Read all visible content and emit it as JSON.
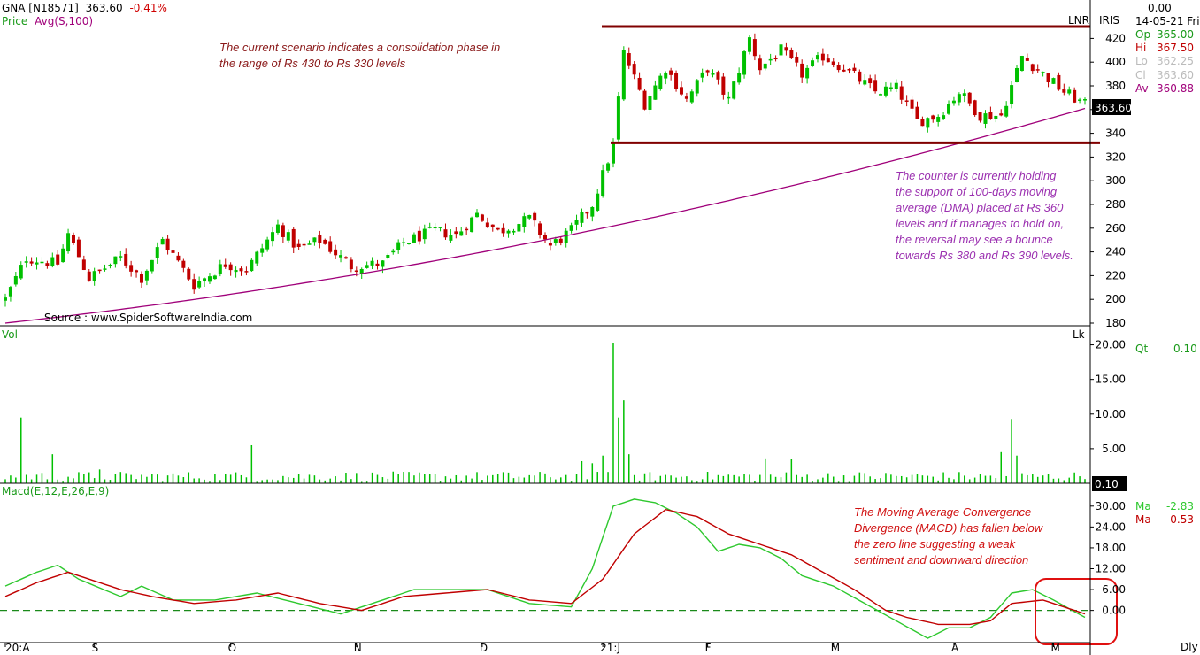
{
  "header": {
    "symbol": "GNA [N18571]",
    "last": "363.60",
    "change": "-0.41%",
    "price_label": "Price",
    "avg_label": "Avg(S,100)",
    "lnr": "LNR",
    "iris": "IRIS",
    "date": "14-05-21 Fri",
    "top_value": "0.00",
    "last_tag": "363.60"
  },
  "ohlc": [
    {
      "label": "Op",
      "value": "365.00"
    },
    {
      "label": "Hi",
      "value": "367.50"
    },
    {
      "label": "Lo",
      "value": "362.25"
    },
    {
      "label": "Cl",
      "value": "363.60"
    },
    {
      "label": "Av",
      "value": "360.88"
    }
  ],
  "source": "Source : www.SpiderSoftwareIndia.com",
  "notes": {
    "consolidation": [
      "The current scenario indicates a consolidation phase in",
      "the range of Rs 430 to Rs 330 levels"
    ],
    "dma": [
      "The counter is currently holding",
      "the support of 100-days moving",
      "average (DMA) placed at Rs 360",
      "levels and if manages to hold on,",
      "the reversal may see a bounce",
      "towards Rs 380 and Rs 390 levels."
    ],
    "macd": [
      "The Moving Average Convergence",
      "Divergence (MACD) has fallen below",
      "the zero line suggesting a weak",
      "sentiment and downward direction"
    ]
  },
  "volume_panel": {
    "label": "Vol",
    "unit": "Lk",
    "qt_label": "Qt",
    "qt_value": "0.10",
    "last_tag": "0.10"
  },
  "macd_panel": {
    "label": "Macd(E,12,E,26,E,9)",
    "legend": [
      {
        "label": "Ma",
        "value": "-2.83"
      },
      {
        "label": "Ma",
        "value": "-0.53"
      }
    ]
  },
  "periodicity": "Dly",
  "colors": {
    "up": "#00c000",
    "down": "#c00000",
    "avg": "#a0007a",
    "zone": "#800000",
    "macd": "#2ec82e",
    "signal": "#c00000",
    "note_maroon": "#8b1a1a",
    "note_purple": "#9b30b0",
    "note_red": "#d01010"
  },
  "chart_data": [
    {
      "type": "candlestick",
      "panel": "price",
      "y_ticks": [
        180,
        200,
        220,
        240,
        260,
        280,
        300,
        320,
        340,
        360,
        380,
        400,
        420
      ],
      "ylim": [
        180,
        430
      ],
      "x_ticks": [
        "20:A",
        "S",
        "O",
        "N",
        "D",
        "21:J",
        "F",
        "M",
        "A",
        "M"
      ],
      "resistance": 430,
      "support": 332,
      "close_anchors": [
        [
          0,
          200
        ],
        [
          4,
          235
        ],
        [
          10,
          230
        ],
        [
          12,
          255
        ],
        [
          16,
          218
        ],
        [
          22,
          235
        ],
        [
          26,
          218
        ],
        [
          30,
          250
        ],
        [
          36,
          212
        ],
        [
          42,
          230
        ],
        [
          46,
          225
        ],
        [
          52,
          262
        ],
        [
          56,
          242
        ],
        [
          60,
          250
        ],
        [
          66,
          228
        ],
        [
          72,
          230
        ],
        [
          76,
          248
        ],
        [
          82,
          258
        ],
        [
          86,
          254
        ],
        [
          90,
          272
        ],
        [
          94,
          257
        ],
        [
          100,
          268
        ],
        [
          104,
          245
        ],
        [
          108,
          258
        ],
        [
          112,
          280
        ],
        [
          116,
          330
        ],
        [
          118,
          408
        ],
        [
          122,
          365
        ],
        [
          126,
          395
        ],
        [
          130,
          368
        ],
        [
          134,
          395
        ],
        [
          138,
          368
        ],
        [
          142,
          420
        ],
        [
          144,
          395
        ],
        [
          148,
          410
        ],
        [
          150,
          400
        ],
        [
          152,
          390
        ],
        [
          156,
          405
        ],
        [
          160,
          395
        ],
        [
          166,
          375
        ],
        [
          170,
          378
        ],
        [
          174,
          350
        ],
        [
          178,
          355
        ],
        [
          182,
          375
        ],
        [
          186,
          355
        ],
        [
          190,
          355
        ],
        [
          194,
          405
        ],
        [
          198,
          390
        ],
        [
          202,
          375
        ],
        [
          206,
          364
        ]
      ],
      "moving_average_100": {
        "name": "Avg(S,100)",
        "start": 180,
        "end": 361
      }
    },
    {
      "type": "bar",
      "panel": "volume",
      "y_ticks": [
        5,
        10,
        15,
        20
      ],
      "ylim": [
        0,
        22.5
      ],
      "spikes": [
        [
          3,
          9.5
        ],
        [
          9,
          4.2
        ],
        [
          18,
          2
        ],
        [
          47,
          5.5
        ],
        [
          110,
          3.2
        ],
        [
          112,
          2.9
        ],
        [
          114,
          4
        ],
        [
          116,
          20.2
        ],
        [
          117,
          9.5
        ],
        [
          118,
          12
        ],
        [
          119,
          4.2
        ],
        [
          145,
          3.6
        ],
        [
          150,
          3.5
        ],
        [
          190,
          4.5
        ],
        [
          192,
          9.3
        ],
        [
          193,
          4
        ]
      ]
    },
    {
      "type": "line",
      "panel": "macd",
      "y_ticks": [
        0,
        6,
        12,
        18,
        24,
        30
      ],
      "ylim": [
        -9,
        33
      ],
      "series": [
        {
          "name": "Macd",
          "anchors": [
            [
              0,
              7
            ],
            [
              6,
              11
            ],
            [
              10,
              13
            ],
            [
              14,
              9
            ],
            [
              22,
              4
            ],
            [
              26,
              7
            ],
            [
              32,
              3
            ],
            [
              40,
              3
            ],
            [
              48,
              5
            ],
            [
              56,
              2
            ],
            [
              64,
              -1
            ],
            [
              72,
              3
            ],
            [
              78,
              6
            ],
            [
              84,
              6
            ],
            [
              92,
              6
            ],
            [
              100,
              2
            ],
            [
              108,
              1
            ],
            [
              112,
              12
            ],
            [
              116,
              30
            ],
            [
              120,
              32
            ],
            [
              124,
              31
            ],
            [
              128,
              28
            ],
            [
              132,
              24
            ],
            [
              136,
              17
            ],
            [
              140,
              19
            ],
            [
              144,
              18
            ],
            [
              148,
              15
            ],
            [
              152,
              10
            ],
            [
              158,
              7
            ],
            [
              164,
              2
            ],
            [
              170,
              -3
            ],
            [
              176,
              -8
            ],
            [
              180,
              -5
            ],
            [
              184,
              -5
            ],
            [
              188,
              -2
            ],
            [
              192,
              5
            ],
            [
              196,
              6
            ],
            [
              200,
              3
            ],
            [
              206,
              -2
            ]
          ]
        },
        {
          "name": "Signal",
          "anchors": [
            [
              0,
              4
            ],
            [
              6,
              8
            ],
            [
              12,
              11
            ],
            [
              22,
              6
            ],
            [
              28,
              4
            ],
            [
              36,
              2
            ],
            [
              44,
              3
            ],
            [
              52,
              5
            ],
            [
              60,
              2
            ],
            [
              68,
              0
            ],
            [
              76,
              4
            ],
            [
              84,
              5
            ],
            [
              92,
              6
            ],
            [
              100,
              3
            ],
            [
              108,
              2
            ],
            [
              114,
              9
            ],
            [
              120,
              22
            ],
            [
              126,
              29
            ],
            [
              132,
              27
            ],
            [
              138,
              22
            ],
            [
              144,
              19
            ],
            [
              150,
              16
            ],
            [
              156,
              11
            ],
            [
              162,
              6
            ],
            [
              168,
              0
            ],
            [
              172,
              -2
            ],
            [
              178,
              -4
            ],
            [
              184,
              -4
            ],
            [
              188,
              -3
            ],
            [
              192,
              2
            ],
            [
              198,
              3
            ],
            [
              206,
              -1
            ]
          ]
        }
      ],
      "zero_line": 0
    }
  ]
}
